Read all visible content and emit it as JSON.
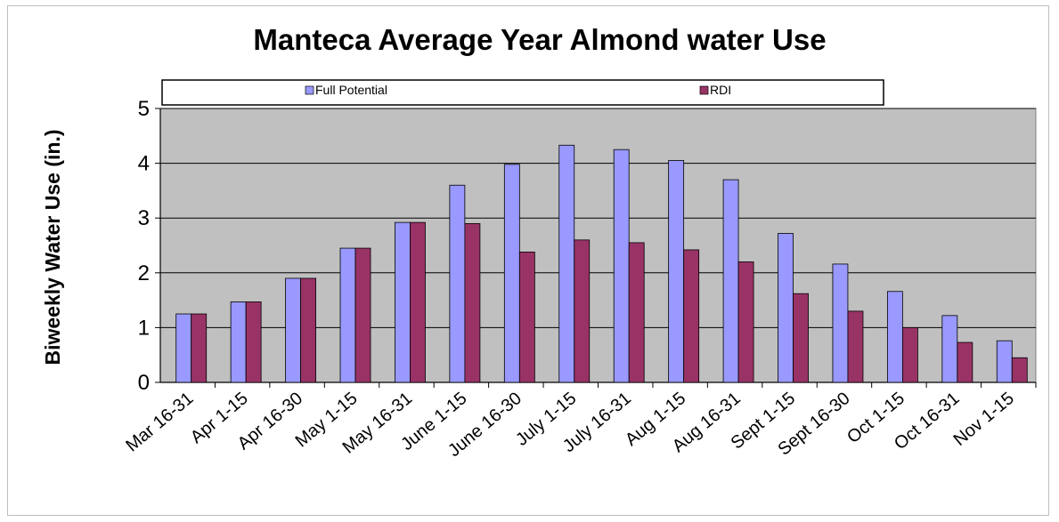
{
  "chart_data": {
    "type": "bar",
    "title": "Manteca Average Year Almond water Use",
    "ylabel": "Biweekly Water Use (in.)",
    "xlabel": "",
    "ylim": [
      0,
      5
    ],
    "yticks": [
      "0",
      "1",
      "2",
      "3",
      "4",
      "5"
    ],
    "grid": true,
    "legend_position": "top",
    "plot_background": "#c0c0c0",
    "categories": [
      "Mar 16-31",
      "Apr 1-15",
      "Apr 16-30",
      "May 1-15",
      "May 16-31",
      "June 1-15",
      "June 16-30",
      "July 1-15",
      "July 16-31",
      "Aug 1-15",
      "Aug 16-31",
      "Sept 1-15",
      "Sept 16-30",
      "Oct 1-15",
      "Oct 16-31",
      "Nov 1-15"
    ],
    "series": [
      {
        "name": "Full Potential",
        "color": "#9999ff",
        "values": [
          1.25,
          1.47,
          1.9,
          2.45,
          2.92,
          3.6,
          3.98,
          4.33,
          4.25,
          4.05,
          3.7,
          2.72,
          2.16,
          1.66,
          1.22,
          0.76
        ]
      },
      {
        "name": "RDI",
        "color": "#993366",
        "values": [
          1.25,
          1.47,
          1.9,
          2.45,
          2.92,
          2.9,
          2.38,
          2.6,
          2.55,
          2.42,
          2.2,
          1.62,
          1.3,
          1.0,
          0.73,
          0.45
        ]
      }
    ]
  }
}
